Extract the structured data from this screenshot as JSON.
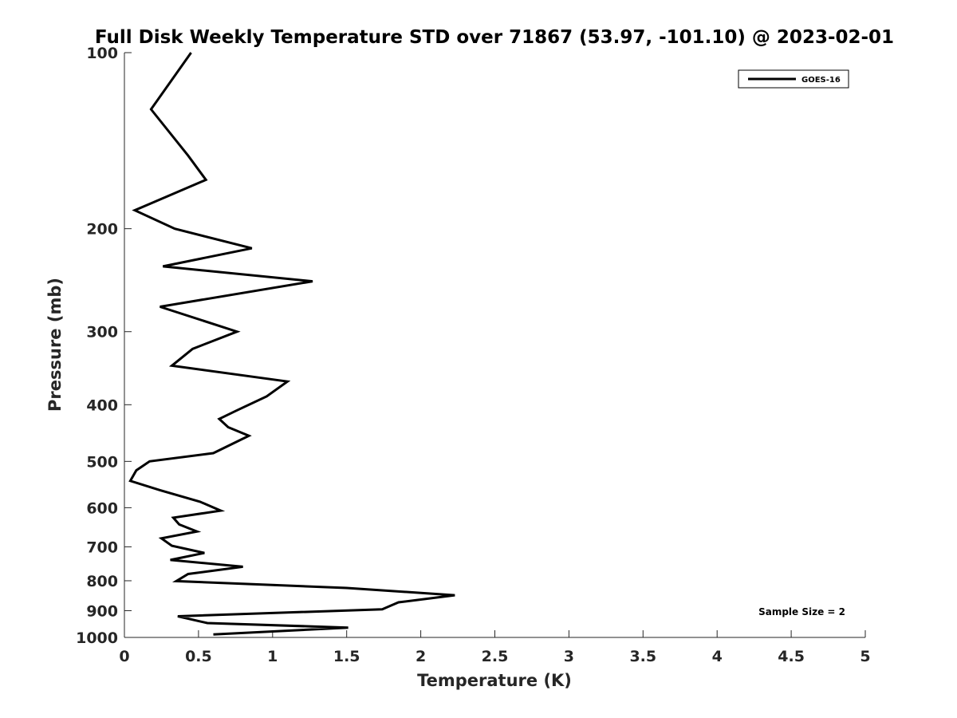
{
  "chart_data": {
    "type": "line",
    "title": "Full Disk Weekly Temperature STD over 71867 (53.97, -101.10) @ 2023-02-01",
    "xlabel": "Temperature (K)",
    "ylabel": "Pressure (mb)",
    "xlim": [
      0,
      5
    ],
    "ylim": [
      100,
      1000
    ],
    "yscale": "log",
    "yreversed": true,
    "xticks": [
      0,
      0.5,
      1,
      1.5,
      2,
      2.5,
      3,
      3.5,
      4,
      4.5,
      5
    ],
    "xtick_labels": [
      "0",
      "0.5",
      "1",
      "1.5",
      "2",
      "2.5",
      "3",
      "3.5",
      "4",
      "4.5",
      "5"
    ],
    "yticks": [
      100,
      200,
      300,
      400,
      500,
      600,
      700,
      800,
      900,
      1000
    ],
    "ytick_labels": [
      "100",
      "200",
      "300",
      "400",
      "500",
      "600",
      "700",
      "800",
      "900",
      "1000"
    ],
    "grid": false,
    "legend_position": "top-right",
    "annotation": "Sample Size = 2",
    "line_color": "#000000",
    "series": [
      {
        "name": "GOES-16",
        "points": [
          [
            0.45,
            100
          ],
          [
            0.18,
            125
          ],
          [
            0.43,
            150
          ],
          [
            0.55,
            165
          ],
          [
            0.07,
            186
          ],
          [
            0.34,
            200
          ],
          [
            0.86,
            216
          ],
          [
            0.26,
            232
          ],
          [
            1.27,
            246
          ],
          [
            0.24,
            272
          ],
          [
            0.76,
            300
          ],
          [
            0.46,
            321
          ],
          [
            0.32,
            343
          ],
          [
            1.1,
            365
          ],
          [
            0.96,
            387
          ],
          [
            0.75,
            410
          ],
          [
            0.64,
            423
          ],
          [
            0.7,
            437
          ],
          [
            0.84,
            452
          ],
          [
            0.6,
            484
          ],
          [
            0.17,
            500
          ],
          [
            0.08,
            518
          ],
          [
            0.04,
            540
          ],
          [
            0.24,
            560
          ],
          [
            0.51,
            586
          ],
          [
            0.65,
            607
          ],
          [
            0.33,
            624
          ],
          [
            0.37,
            641
          ],
          [
            0.49,
            659
          ],
          [
            0.25,
            677
          ],
          [
            0.32,
            697
          ],
          [
            0.54,
            717
          ],
          [
            0.31,
            737
          ],
          [
            0.8,
            757
          ],
          [
            0.43,
            779
          ],
          [
            0.35,
            801
          ],
          [
            1.5,
            823
          ],
          [
            2.23,
            847
          ],
          [
            1.85,
            871
          ],
          [
            1.74,
            895
          ],
          [
            0.36,
            920
          ],
          [
            0.56,
            945
          ],
          [
            1.51,
            962
          ],
          [
            0.6,
            988
          ]
        ]
      }
    ]
  }
}
